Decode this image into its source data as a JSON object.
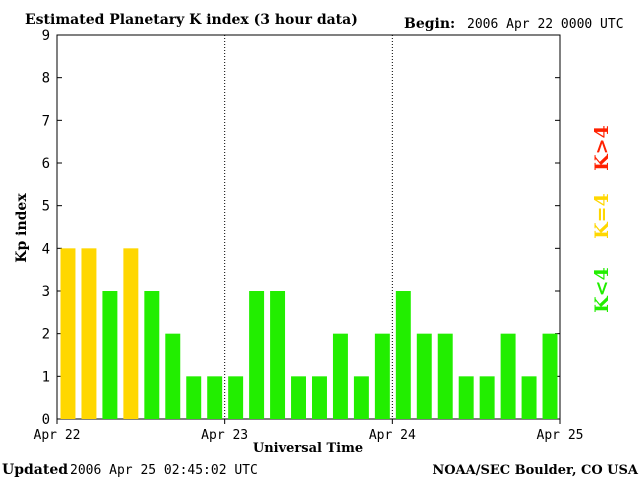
{
  "header": {
    "title": "Estimated Planetary K index (3 hour data)",
    "begin_label": "Begin:",
    "begin_value": "2006 Apr 22 0000 UTC"
  },
  "footer": {
    "updated_label": "Updated",
    "updated_value": "2006 Apr 25 02:45:02 UTC",
    "source": "NOAA/SEC Boulder, CO USA"
  },
  "legend": {
    "items": [
      {
        "label": "K>4",
        "color": "#ff2000"
      },
      {
        "label": "K=4",
        "color": "#ffd700"
      },
      {
        "label": "K<4",
        "color": "#22ee00"
      }
    ]
  },
  "chart_data": {
    "type": "bar",
    "title": "Estimated Planetary K index (3 hour data)",
    "xlabel": "Universal Time",
    "ylabel": "Kp index",
    "ylim": [
      0,
      9
    ],
    "yticks": [
      0,
      1,
      2,
      3,
      4,
      5,
      6,
      7,
      8,
      9
    ],
    "xticks": [
      "Apr 22",
      "Apr 23",
      "Apr 24",
      "Apr 25"
    ],
    "days": 3,
    "bars_per_day": 8,
    "values": [
      4,
      4,
      3,
      4,
      3,
      2,
      1,
      1,
      1,
      3,
      3,
      1,
      1,
      2,
      1,
      2,
      3,
      2,
      2,
      1,
      1,
      2,
      1,
      2
    ],
    "colors": {
      "below": "#22ee00",
      "equal": "#ffd700",
      "above": "#ff2000"
    },
    "grid": "vertical dotted lines at day boundaries"
  }
}
